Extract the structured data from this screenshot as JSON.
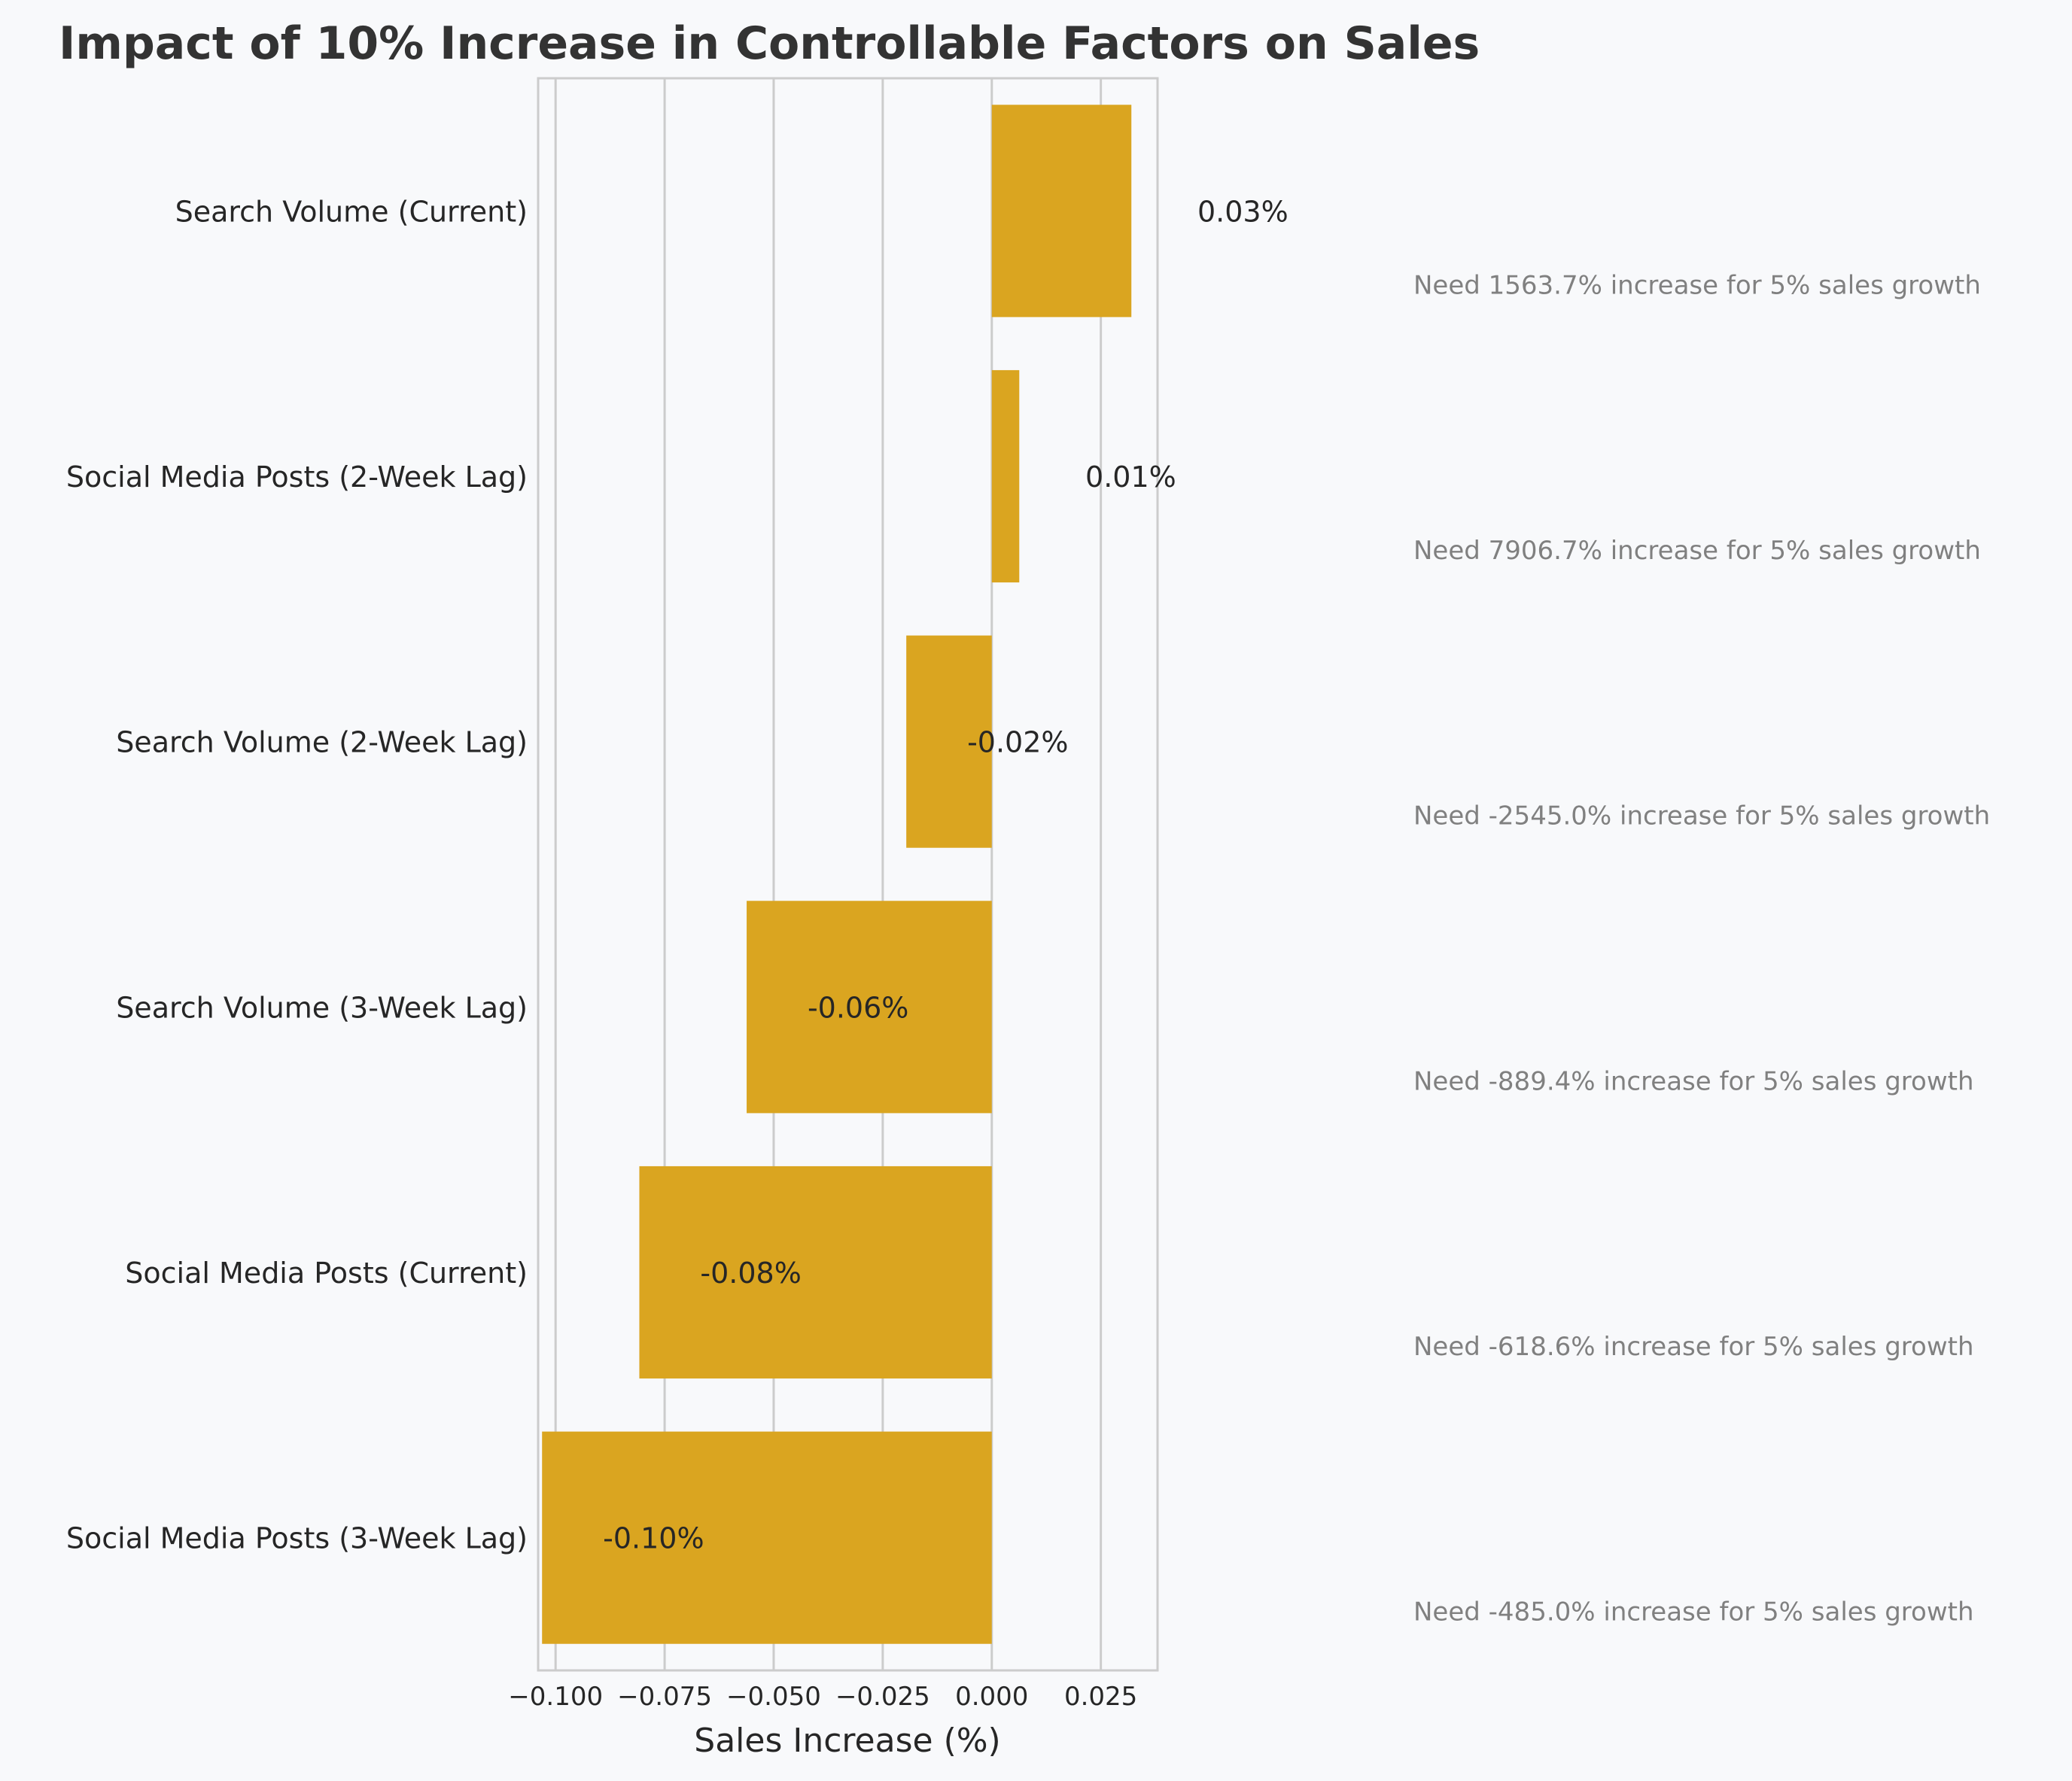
{
  "chart_data": {
    "type": "bar",
    "orientation": "horizontal",
    "title": "Impact of 10% Increase in Controllable Factors on Sales",
    "xlabel": "Sales Increase (%)",
    "ylabel": "",
    "xlim": [
      -0.104,
      0.038
    ],
    "xticks": [
      -0.1,
      -0.075,
      -0.05,
      -0.025,
      0.0,
      0.025
    ],
    "xtick_labels": [
      "−0.100",
      "−0.075",
      "−0.050",
      "−0.025",
      "0.000",
      "0.025"
    ],
    "grid": "vertical",
    "bar_color": "#DAA520",
    "categories": [
      "Search Volume (Current)",
      "Social Media Posts (2-Week Lag)",
      "Search Volume (2-Week Lag)",
      "Search Volume (3-Week Lag)",
      "Social Media Posts (Current)",
      "Social Media Posts (3-Week Lag)"
    ],
    "values": [
      0.032,
      0.0063,
      -0.0196,
      -0.0562,
      -0.0808,
      -0.1031
    ],
    "value_labels": [
      "0.03%",
      "0.01%",
      "-0.02%",
      "-0.06%",
      "-0.08%",
      "-0.10%"
    ],
    "annotations": [
      "Need 1563.7% increase for 5% sales growth",
      "Need 7906.7% increase for 5% sales growth",
      "Need -2545.0% increase for 5% sales growth",
      "Need -889.4% increase for 5% sales growth",
      "Need -618.6% increase for 5% sales growth",
      "Need -485.0% increase for 5% sales growth"
    ]
  }
}
